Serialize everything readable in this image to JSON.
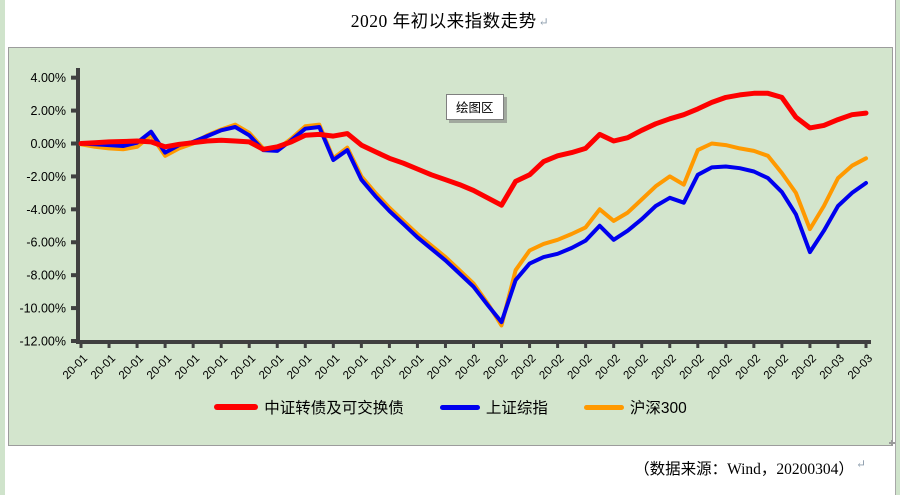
{
  "page": {
    "title": "2020 年初以来指数走势",
    "paragraph_mark": "↵",
    "source_note": "（数据来源：Wind，20200304）",
    "plot_area_tooltip": "绘图区"
  },
  "colors": {
    "chart_background": "#d3e5cd",
    "chart_border": "#9c9c9c",
    "axis": "#404040",
    "series_red": "#fe0000",
    "series_blue": "#0000ee",
    "series_orange": "#ff9900"
  },
  "chart_data": {
    "type": "line",
    "title": "2020 年初以来指数走势",
    "xlabel": "",
    "ylabel": "",
    "ylim": [
      -12,
      4
    ],
    "grid": false,
    "legend_position": "bottom",
    "y_tick_labels": [
      "4.00%",
      "2.00%",
      "0.00%",
      "-2.00%",
      "-4.00%",
      "-6.00%",
      "-8.00%",
      "-10.00%",
      "-12.00%"
    ],
    "y_tick_values": [
      4,
      2,
      0,
      -2,
      -4,
      -6,
      -8,
      -10,
      -12
    ],
    "x_tick_labels": [
      "20-01",
      "20-01",
      "20-01",
      "20-01",
      "20-01",
      "20-01",
      "20-01",
      "20-01",
      "20-01",
      "20-01",
      "20-01",
      "20-01",
      "20-01",
      "20-01",
      "20-02",
      "20-02",
      "20-02",
      "20-02",
      "20-02",
      "20-02",
      "20-02",
      "20-02",
      "20-02",
      "20-02",
      "20-02",
      "20-02",
      "20-02",
      "20-03",
      "20-03"
    ],
    "points_per_label": 2,
    "unit": "percent cumulative return",
    "series": [
      {
        "name": "中证转债及可交换债",
        "color": "#fe0000",
        "line_width": 5,
        "values": [
          0.0,
          0.05,
          0.1,
          0.12,
          0.15,
          0.1,
          -0.2,
          -0.05,
          0.05,
          0.15,
          0.2,
          0.15,
          0.1,
          -0.35,
          -0.2,
          0.1,
          0.5,
          0.55,
          0.45,
          0.6,
          -0.1,
          -0.5,
          -0.9,
          -1.2,
          -1.55,
          -1.9,
          -2.2,
          -2.5,
          -2.85,
          -3.3,
          -3.75,
          -2.3,
          -1.9,
          -1.1,
          -0.75,
          -0.55,
          -0.3,
          0.55,
          0.15,
          0.35,
          0.8,
          1.2,
          1.5,
          1.75,
          2.1,
          2.5,
          2.8,
          2.95,
          3.05,
          3.05,
          2.8,
          1.6,
          0.95,
          1.1,
          1.45,
          1.75,
          1.85
        ]
      },
      {
        "name": "上证综指",
        "color": "#0000ee",
        "line_width": 4,
        "values": [
          0.0,
          -0.05,
          -0.1,
          -0.15,
          0.05,
          0.72,
          -0.55,
          -0.1,
          0.1,
          0.45,
          0.8,
          1.0,
          0.5,
          -0.4,
          -0.45,
          0.2,
          0.9,
          1.0,
          -1.0,
          -0.4,
          -2.2,
          -3.2,
          -4.1,
          -4.9,
          -5.7,
          -6.4,
          -7.1,
          -7.9,
          -8.7,
          -9.8,
          -10.85,
          -8.3,
          -7.3,
          -6.9,
          -6.7,
          -6.35,
          -5.9,
          -5.0,
          -5.85,
          -5.3,
          -4.6,
          -3.8,
          -3.3,
          -3.6,
          -1.9,
          -1.45,
          -1.4,
          -1.5,
          -1.7,
          -2.1,
          -2.95,
          -4.3,
          -6.6,
          -5.3,
          -3.8,
          -3.0,
          -2.4
        ]
      },
      {
        "name": "沪深300",
        "color": "#ff9900",
        "line_width": 4,
        "values": [
          -0.05,
          -0.2,
          -0.3,
          -0.35,
          -0.2,
          0.5,
          -0.75,
          -0.3,
          0.0,
          0.5,
          0.85,
          1.15,
          0.65,
          -0.3,
          -0.35,
          0.3,
          1.05,
          1.15,
          -0.9,
          -0.25,
          -2.0,
          -3.0,
          -3.9,
          -4.7,
          -5.5,
          -6.2,
          -6.9,
          -7.7,
          -8.5,
          -9.7,
          -11.05,
          -7.7,
          -6.5,
          -6.1,
          -5.85,
          -5.5,
          -5.1,
          -4.0,
          -4.7,
          -4.2,
          -3.4,
          -2.6,
          -2.0,
          -2.5,
          -0.4,
          0.0,
          -0.1,
          -0.3,
          -0.45,
          -0.75,
          -1.8,
          -3.0,
          -5.2,
          -3.8,
          -2.1,
          -1.35,
          -0.9
        ]
      }
    ]
  }
}
